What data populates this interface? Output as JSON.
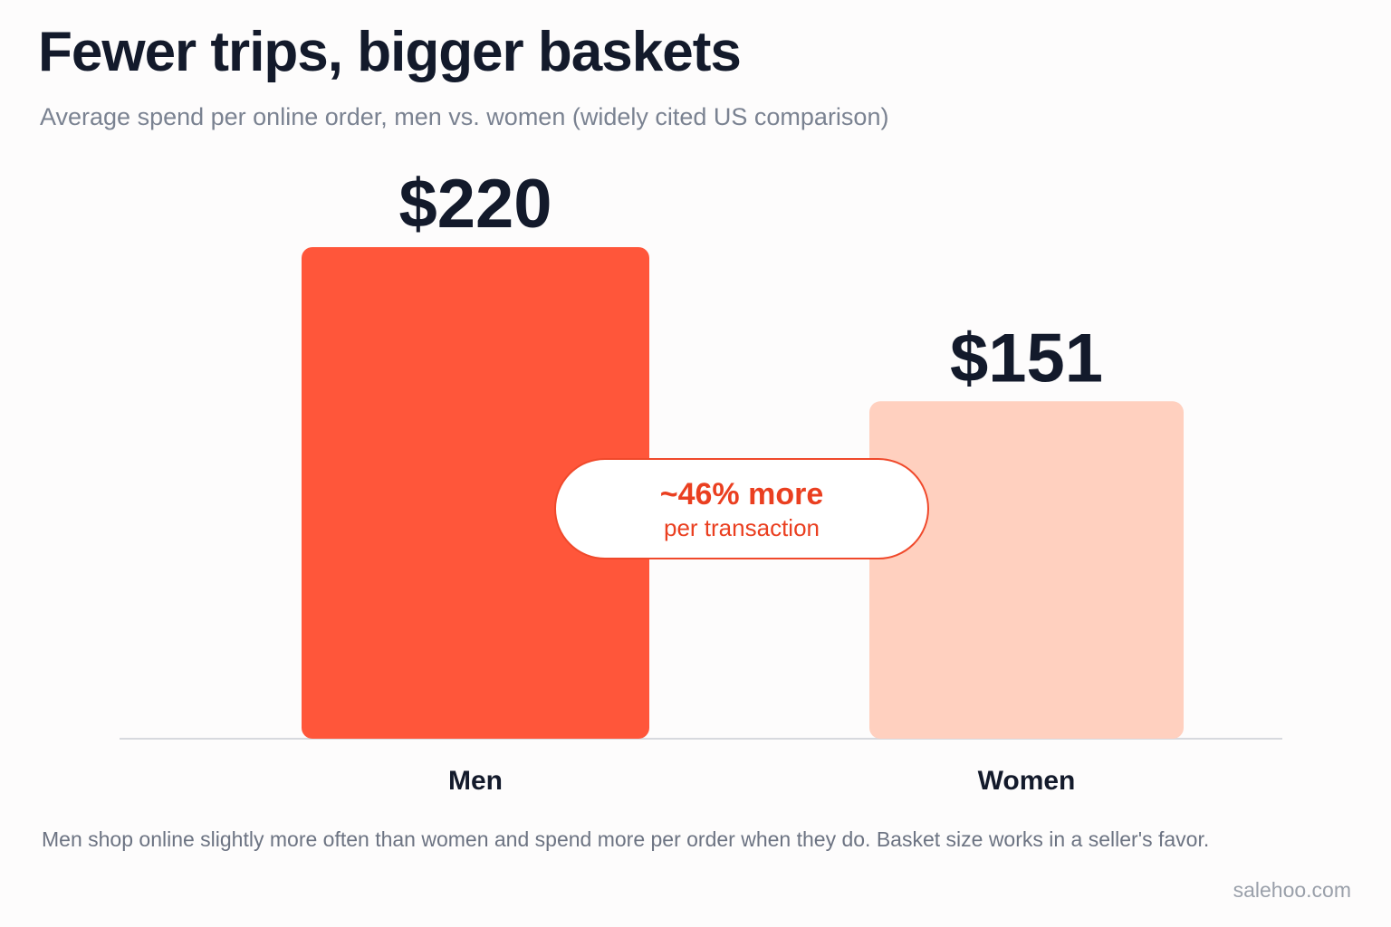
{
  "title": "Fewer trips, bigger baskets",
  "subtitle": "Average spend per online order, men vs. women (widely cited US comparison)",
  "chart_data": {
    "type": "bar",
    "categories": [
      "Men",
      "Women"
    ],
    "values": [
      220,
      151
    ],
    "value_labels": [
      "$220",
      "$151"
    ],
    "ylim": [
      0,
      220
    ],
    "grid": false,
    "colors": [
      "#ff563a",
      "#ffd0bf"
    ],
    "axis_color": "#d7d9de"
  },
  "callout": {
    "main": "~46% more",
    "sub": "per transaction",
    "color": "#ea3f20"
  },
  "footnote": "Men shop online slightly more often than women and spend more per order when they do. Basket size works in a seller's favor.",
  "source": "salehoo.com"
}
